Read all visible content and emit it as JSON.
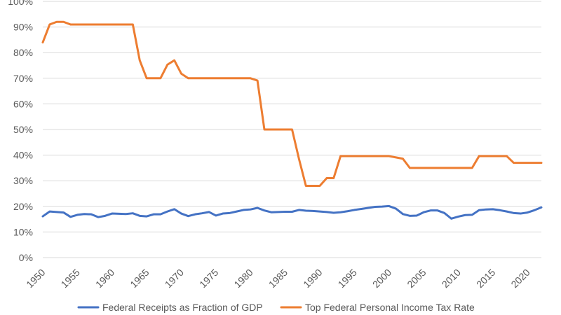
{
  "chart_data": {
    "type": "line",
    "grid": true,
    "legend_position": "bottom",
    "ylim": [
      0,
      100
    ],
    "y_ticks": [
      "0%",
      "10%",
      "20%",
      "30%",
      "40%",
      "50%",
      "60%",
      "70%",
      "80%",
      "90%",
      "100%"
    ],
    "xlim": [
      1950,
      2022
    ],
    "x_ticks": [
      "1950",
      "1955",
      "1960",
      "1965",
      "1970",
      "1975",
      "1980",
      "1985",
      "1990",
      "1995",
      "2000",
      "2005",
      "2010",
      "2015",
      "2020"
    ],
    "x": [
      1950,
      1951,
      1952,
      1953,
      1954,
      1955,
      1956,
      1957,
      1958,
      1959,
      1960,
      1961,
      1962,
      1963,
      1964,
      1965,
      1966,
      1967,
      1968,
      1969,
      1970,
      1971,
      1972,
      1973,
      1974,
      1975,
      1976,
      1977,
      1978,
      1979,
      1980,
      1981,
      1982,
      1983,
      1984,
      1985,
      1986,
      1987,
      1988,
      1989,
      1990,
      1991,
      1992,
      1993,
      1994,
      1995,
      1996,
      1997,
      1998,
      1999,
      2000,
      2001,
      2002,
      2003,
      2004,
      2005,
      2006,
      2007,
      2008,
      2009,
      2010,
      2011,
      2012,
      2013,
      2014,
      2015,
      2016,
      2017,
      2018,
      2019,
      2020,
      2021,
      2022
    ],
    "series": [
      {
        "name": "Federal Receipts as Fraction of GDP",
        "color": "#4472C4",
        "values": [
          16.1,
          18.0,
          17.8,
          17.6,
          15.9,
          16.7,
          17.0,
          16.9,
          15.8,
          16.3,
          17.2,
          17.1,
          17.0,
          17.3,
          16.3,
          16.1,
          16.9,
          16.9,
          18.0,
          18.9,
          17.2,
          16.2,
          16.9,
          17.3,
          17.8,
          16.4,
          17.2,
          17.4,
          18.0,
          18.6,
          18.8,
          19.4,
          18.4,
          17.7,
          17.8,
          17.9,
          17.9,
          18.6,
          18.3,
          18.2,
          18.0,
          17.8,
          17.5,
          17.7,
          18.1,
          18.6,
          19.0,
          19.4,
          19.8,
          19.9,
          20.1,
          19.1,
          17.0,
          16.3,
          16.4,
          17.7,
          18.4,
          18.4,
          17.4,
          15.2,
          16.0,
          16.6,
          16.7,
          18.5,
          18.8,
          18.9,
          18.5,
          18.0,
          17.4,
          17.2,
          17.6,
          18.5,
          19.6
        ]
      },
      {
        "name": "Top Federal Personal Income Tax Rate",
        "color": "#ED7D31",
        "values": [
          84.0,
          91.0,
          92.0,
          92.0,
          91.0,
          91.0,
          91.0,
          91.0,
          91.0,
          91.0,
          91.0,
          91.0,
          91.0,
          91.0,
          77.0,
          70.0,
          70.0,
          70.0,
          75.3,
          77.0,
          71.8,
          70.0,
          70.0,
          70.0,
          70.0,
          70.0,
          70.0,
          70.0,
          70.0,
          70.0,
          70.0,
          69.1,
          50.0,
          50.0,
          50.0,
          50.0,
          50.0,
          38.5,
          28.0,
          28.0,
          28.0,
          31.0,
          31.0,
          39.6,
          39.6,
          39.6,
          39.6,
          39.6,
          39.6,
          39.6,
          39.6,
          39.1,
          38.6,
          35.0,
          35.0,
          35.0,
          35.0,
          35.0,
          35.0,
          35.0,
          35.0,
          35.0,
          35.0,
          39.6,
          39.6,
          39.6,
          39.6,
          39.6,
          37.0,
          37.0,
          37.0,
          37.0,
          37.0
        ]
      }
    ]
  }
}
